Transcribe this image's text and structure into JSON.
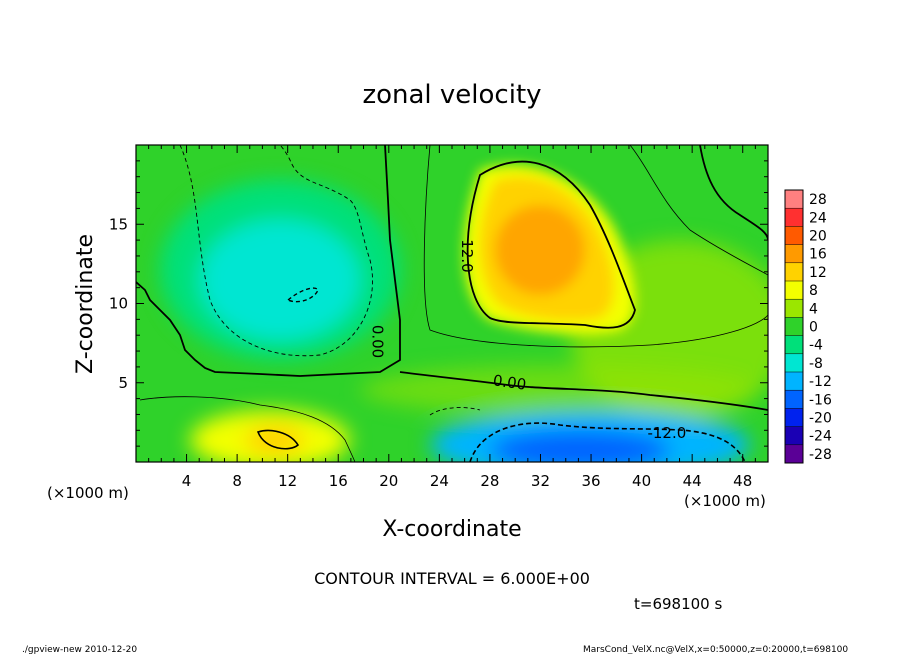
{
  "chart_data": {
    "type": "heatmap",
    "title": "zonal velocity",
    "xlabel": "X-coordinate",
    "ylabel": "Z-coordinate",
    "x_unit_label": "(×1000 m)",
    "z_unit_label": "(×1000 m)",
    "xlim": [
      0,
      50
    ],
    "ylim": [
      0,
      20
    ],
    "x_ticks": [
      4,
      8,
      12,
      16,
      20,
      24,
      28,
      32,
      36,
      40,
      44,
      48
    ],
    "y_ticks": [
      5,
      10,
      15
    ],
    "colorbar": {
      "levels": [
        28,
        24,
        20,
        16,
        12,
        8,
        4,
        0,
        -4,
        -8,
        -12,
        -16,
        -20,
        -24,
        -28
      ],
      "colors": [
        "#ff8080",
        "#ff3030",
        "#ff5a00",
        "#ff9a00",
        "#ffd200",
        "#f3ff00",
        "#9be600",
        "#2fd22a",
        "#00e07a",
        "#00e6d2",
        "#00b4ff",
        "#0064ff",
        "#0022ee",
        "#1a00b4",
        "#5a0096"
      ]
    },
    "contour_labels": [
      {
        "text": "12.0",
        "x": 25.8,
        "z": 13.0
      },
      {
        "text": "0.00",
        "x": 18.7,
        "z": 7.6
      },
      {
        "text": "0.00",
        "x": 29.5,
        "z": 4.7
      },
      {
        "text": "-12.0",
        "x": 42.0,
        "z": 1.5
      }
    ],
    "contour_interval_text": "CONTOUR INTERVAL = 6.000E+00",
    "time_text": "t=698100 s"
  },
  "footer": {
    "left": "./gpview-new  2010-12-20",
    "right": "MarsCond_VelX.nc@VelX,x=0:50000,z=0:20000,t=698100"
  }
}
